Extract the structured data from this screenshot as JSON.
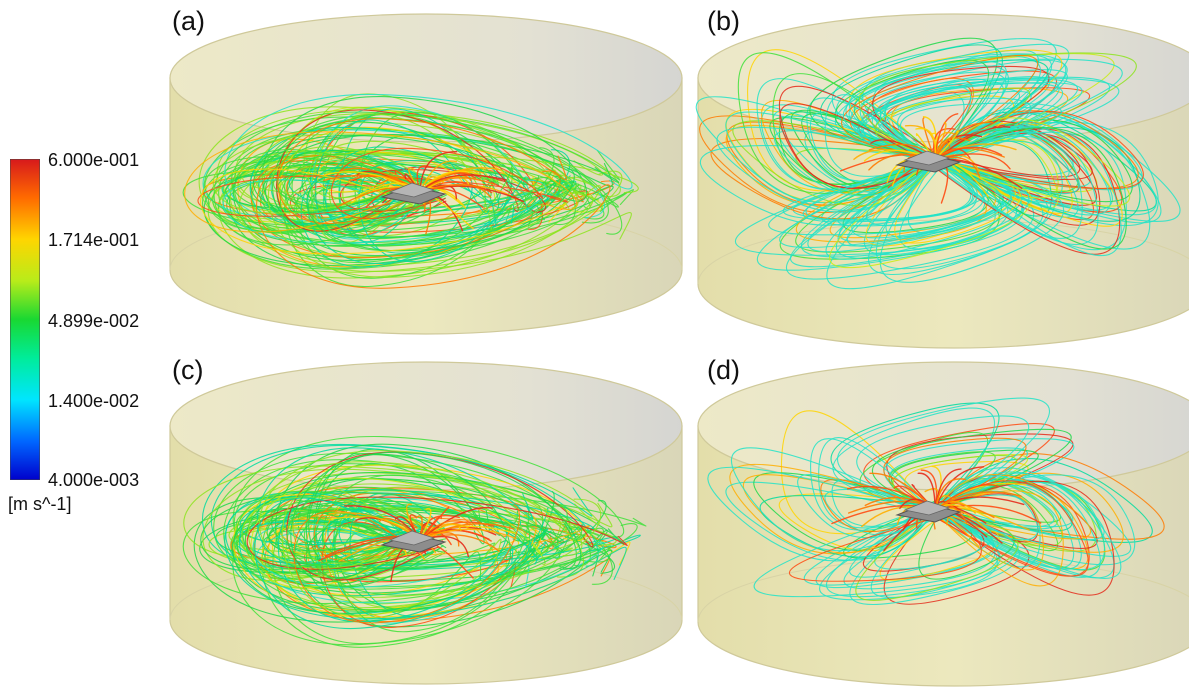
{
  "colorbar": {
    "ticks": [
      "6.000e-001",
      "1.714e-001",
      "4.899e-002",
      "1.400e-002",
      "4.000e-003"
    ],
    "unit": "[m s^-1]",
    "colors": [
      "#d7191c",
      "#ff6a00",
      "#ffd500",
      "#b8ec1a",
      "#19d832",
      "#00ec9a",
      "#00e5ff",
      "#0066ff",
      "#0000cc"
    ]
  },
  "panels": [
    {
      "label": "(a)",
      "pattern": "wide"
    },
    {
      "label": "(b)",
      "pattern": "lobed-dense"
    },
    {
      "label": "(c)",
      "pattern": "wide"
    },
    {
      "label": "(d)",
      "pattern": "lobed-sparse"
    }
  ],
  "colors": {
    "tank_fill": "#ece7b8",
    "tank_top": "#e6e3cc",
    "tank_edge": "#cfc99a"
  }
}
